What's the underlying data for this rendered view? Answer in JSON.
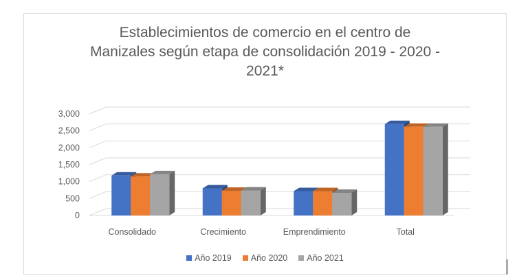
{
  "chart_data": {
    "type": "bar",
    "title_lines": [
      "Establecimientos de comercio en el centro de",
      "Manizales según etapa de consolidación 2019 - 2020 -",
      "2021*"
    ],
    "xlabel": "",
    "ylabel": "",
    "categories": [
      "Consolidado",
      "Crecimiento",
      "Emprendimiento",
      "Total"
    ],
    "series": [
      {
        "name": "Año 2019",
        "color": "#4472c4",
        "values": [
          1180,
          800,
          720,
          2700
        ]
      },
      {
        "name": "Año 2020",
        "color": "#ed7d31",
        "values": [
          1150,
          730,
          720,
          2620
        ]
      },
      {
        "name": "Año 2021",
        "color": "#a5a5a5",
        "values": [
          1220,
          740,
          670,
          2620
        ]
      }
    ],
    "ylim": [
      0,
      3000
    ],
    "yticks": [
      0,
      500,
      1000,
      1500,
      2000,
      2500,
      3000
    ],
    "ytick_labels": [
      "0",
      "500",
      "1,000",
      "1,500",
      "2,000",
      "2,500",
      "3,000"
    ],
    "grid": true,
    "legend_position": "bottom",
    "style": "3d-clustered-column"
  }
}
